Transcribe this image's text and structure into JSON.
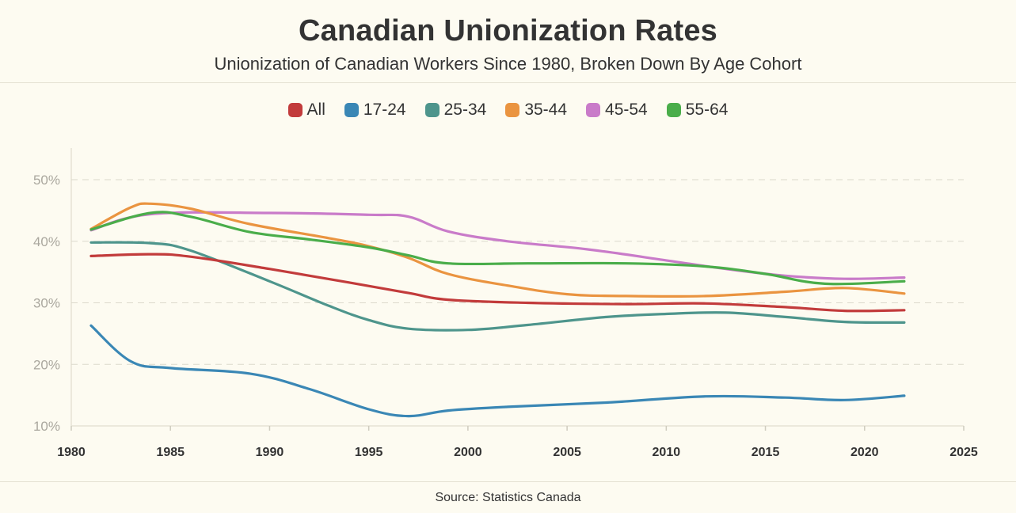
{
  "header": {
    "title": "Canadian Unionization Rates",
    "subtitle": "Unionization of Canadian Workers Since 1980, Broken Down By Age Cohort"
  },
  "footer": {
    "source": "Source: Statistics Canada"
  },
  "chart_data": {
    "type": "line",
    "title": "Canadian Unionization Rates",
    "subtitle": "Unionization of Canadian Workers Since 1980, Broken Down By Age Cohort",
    "xlabel": "",
    "ylabel": "",
    "xlim": [
      1980,
      2025
    ],
    "ylim": [
      10,
      55
    ],
    "x_ticks": [
      1980,
      1985,
      1990,
      1995,
      2000,
      2005,
      2010,
      2015,
      2020,
      2025
    ],
    "x_tick_labels": [
      "1980",
      "1985",
      "1990",
      "1995",
      "2000",
      "2005",
      "2010",
      "2015",
      "2020",
      "2025"
    ],
    "y_ticks": [
      10,
      20,
      30,
      40,
      50
    ],
    "y_tick_labels": [
      "10%",
      "20%",
      "30%",
      "40%",
      "50%"
    ],
    "grid": "horizontal dashed",
    "legend_position": "top",
    "series": [
      {
        "name": "All",
        "color": "#c23b3b",
        "points": [
          [
            1981,
            37.6
          ],
          [
            1984,
            37.9
          ],
          [
            1986,
            37.5
          ],
          [
            1990,
            35.5
          ],
          [
            1994,
            33.3
          ],
          [
            1997,
            31.6
          ],
          [
            1999,
            30.5
          ],
          [
            2003,
            30.0
          ],
          [
            2008,
            29.8
          ],
          [
            2012,
            29.9
          ],
          [
            2016,
            29.3
          ],
          [
            2019,
            28.7
          ],
          [
            2022,
            28.8
          ]
        ]
      },
      {
        "name": "17-24",
        "color": "#3a87b5",
        "points": [
          [
            1981,
            26.3
          ],
          [
            1983,
            20.5
          ],
          [
            1985,
            19.4
          ],
          [
            1989,
            18.5
          ],
          [
            1992,
            16.0
          ],
          [
            1995,
            12.7
          ],
          [
            1997,
            11.6
          ],
          [
            1999,
            12.5
          ],
          [
            2002,
            13.1
          ],
          [
            2007,
            13.8
          ],
          [
            2012,
            14.8
          ],
          [
            2016,
            14.6
          ],
          [
            2019,
            14.2
          ],
          [
            2022,
            14.9
          ]
        ]
      },
      {
        "name": "25-34",
        "color": "#4e958c",
        "points": [
          [
            1981,
            39.8
          ],
          [
            1984,
            39.7
          ],
          [
            1986,
            38.5
          ],
          [
            1990,
            33.5
          ],
          [
            1993,
            29.5
          ],
          [
            1995,
            27.2
          ],
          [
            1997,
            25.8
          ],
          [
            2000,
            25.6
          ],
          [
            2003,
            26.4
          ],
          [
            2007,
            27.7
          ],
          [
            2010,
            28.2
          ],
          [
            2013,
            28.4
          ],
          [
            2016,
            27.7
          ],
          [
            2019,
            26.9
          ],
          [
            2022,
            26.8
          ]
        ]
      },
      {
        "name": "35-44",
        "color": "#ea9440",
        "points": [
          [
            1981,
            42.0
          ],
          [
            1983,
            45.5
          ],
          [
            1984,
            46.1
          ],
          [
            1986,
            45.3
          ],
          [
            1989,
            42.8
          ],
          [
            1993,
            40.5
          ],
          [
            1995,
            39.2
          ],
          [
            1997,
            37.3
          ],
          [
            1999,
            34.7
          ],
          [
            2002,
            32.8
          ],
          [
            2005,
            31.4
          ],
          [
            2008,
            31.1
          ],
          [
            2012,
            31.1
          ],
          [
            2016,
            31.8
          ],
          [
            2019,
            32.4
          ],
          [
            2022,
            31.5
          ]
        ]
      },
      {
        "name": "45-54",
        "color": "#c97bc9",
        "points": [
          [
            1981,
            41.8
          ],
          [
            1984,
            44.4
          ],
          [
            1990,
            44.6
          ],
          [
            1995,
            44.3
          ],
          [
            1997,
            44.0
          ],
          [
            1999,
            41.6
          ],
          [
            2002,
            40.0
          ],
          [
            2006,
            38.7
          ],
          [
            2010,
            36.9
          ],
          [
            2013,
            35.5
          ],
          [
            2016,
            34.4
          ],
          [
            2019,
            33.9
          ],
          [
            2022,
            34.1
          ]
        ]
      },
      {
        "name": "55-64",
        "color": "#4aad4a",
        "points": [
          [
            1981,
            41.9
          ],
          [
            1984,
            44.6
          ],
          [
            1986,
            44.0
          ],
          [
            1989,
            41.5
          ],
          [
            1992,
            40.3
          ],
          [
            1995,
            39.0
          ],
          [
            1997,
            37.7
          ],
          [
            1999,
            36.4
          ],
          [
            2003,
            36.4
          ],
          [
            2008,
            36.4
          ],
          [
            2012,
            35.9
          ],
          [
            2015,
            34.7
          ],
          [
            2018,
            33.1
          ],
          [
            2022,
            33.5
          ]
        ]
      }
    ]
  }
}
